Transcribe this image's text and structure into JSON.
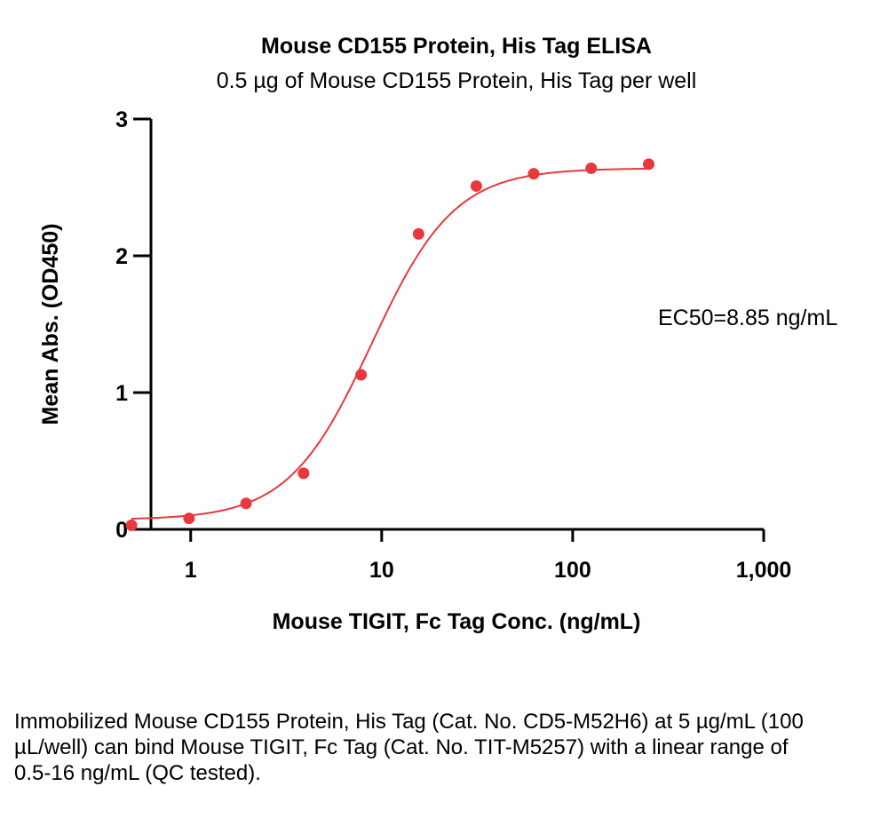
{
  "chart_data": {
    "type": "scatter",
    "title": "Mouse CD155 Protein, His Tag ELISA",
    "subtitle": "0.5 µg of Mouse CD155 Protein, His Tag per well",
    "xlabel": "Mouse TIGIT, Fc Tag Conc. (ng/mL)",
    "ylabel": "Mean Abs. (OD450)",
    "xscale": "log",
    "xlim": [
      0.5,
      1000
    ],
    "ylim": [
      0,
      3
    ],
    "xticks": [
      1,
      10,
      100,
      1000
    ],
    "xtick_labels": [
      "1",
      "10",
      "100",
      "1,000"
    ],
    "yticks": [
      0,
      1,
      2,
      3
    ],
    "ytick_labels": [
      "0",
      "1",
      "2",
      "3"
    ],
    "grid": false,
    "annotation": "EC50=8.85 ng/mL",
    "series": [
      {
        "x": [
          0.49,
          0.98,
          1.95,
          3.9,
          7.8,
          15.6,
          31.3,
          62.5,
          125,
          250
        ],
        "y": [
          0.03,
          0.08,
          0.19,
          0.41,
          1.13,
          2.16,
          2.51,
          2.6,
          2.64,
          2.67
        ],
        "color": "#e8383d"
      }
    ],
    "fit_curve": {
      "model": "4PL",
      "bottom": 0.07,
      "top": 2.64,
      "ec50": 8.85,
      "hill": 2.0,
      "color": "#e8383d"
    }
  },
  "caption": "Immobilized Mouse CD155 Protein, His Tag (Cat. No. CD5-M52H6) at 5 µg/mL (100 µL/well) can bind Mouse TIGIT, Fc Tag (Cat. No. TIT-M5257) with a linear range of 0.5-16 ng/mL (QC tested)."
}
